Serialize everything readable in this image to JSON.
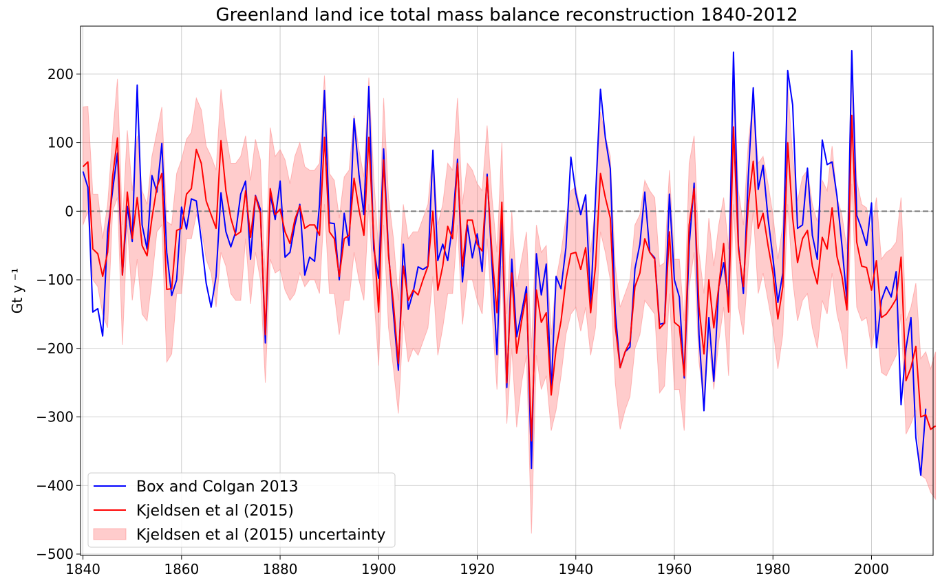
{
  "chart_data": {
    "type": "line",
    "title": "Greenland land ice total mass balance reconstruction 1840-2012",
    "xlabel": "",
    "ylabel": "Gt y ⁻¹",
    "xlim": [
      1839.5,
      2012.5
    ],
    "ylim": [
      -502,
      270
    ],
    "xticks": [
      1840,
      1860,
      1880,
      1900,
      1920,
      1940,
      1960,
      1980,
      2000
    ],
    "xtick_labels": [
      "1840",
      "1860",
      "1880",
      "1900",
      "1920",
      "1940",
      "1960",
      "1980",
      "2000"
    ],
    "yticks": [
      200,
      100,
      0,
      -100,
      -200,
      -300,
      -400,
      -500
    ],
    "ytick_labels": [
      "200",
      "100",
      "0",
      "−100",
      "−200",
      "−300",
      "−400",
      "−500"
    ],
    "grid": true,
    "zero_line": true,
    "legend_position": "lower-left",
    "colors": {
      "box_colgan": "#0000ff",
      "kjeldsen": "#ff0000",
      "uncertainty": "#ff8080",
      "zero_line": "#808080",
      "grid": "#b0b0b0"
    },
    "series": [
      {
        "name": "Box and Colgan 2013",
        "color": "#0000ff",
        "start_year": 1840,
        "values": [
          58,
          35,
          -147,
          -142,
          -182,
          -30,
          30,
          85,
          -93,
          7,
          -44,
          184,
          -20,
          -55,
          52,
          28,
          99,
          -60,
          -123,
          -100,
          6,
          -26,
          18,
          15,
          -42,
          -105,
          -140,
          -95,
          27,
          -30,
          -52,
          -30,
          25,
          44,
          -70,
          23,
          3,
          -192,
          25,
          -12,
          44,
          -67,
          -60,
          -20,
          10,
          -93,
          -67,
          -73,
          10,
          176,
          -17,
          -18,
          -100,
          -3,
          -50,
          135,
          54,
          -5,
          182,
          -55,
          -98,
          91,
          -60,
          -150,
          -232,
          -48,
          -143,
          -118,
          -81,
          -85,
          -80,
          89,
          -72,
          -48,
          -72,
          -20,
          76,
          -103,
          -20,
          -68,
          -33,
          -88,
          54,
          -78,
          -209,
          -12,
          -257,
          -70,
          -183,
          -148,
          -110,
          -375,
          -62,
          -122,
          -77,
          -262,
          -95,
          -113,
          -53,
          79,
          26,
          -5,
          24,
          -135,
          20,
          178,
          107,
          62,
          -148,
          -228,
          -205,
          -198,
          -84,
          -48,
          28,
          -60,
          -68,
          -165,
          -163,
          25,
          -100,
          -125,
          -243,
          -50,
          41,
          -180,
          -291,
          -155,
          -248,
          -110,
          -75,
          -130,
          232,
          -50,
          -120,
          50,
          180,
          32,
          67,
          -10,
          -68,
          -133,
          -90,
          205,
          155,
          -25,
          -20,
          63,
          -35,
          -70,
          104,
          68,
          72,
          22,
          -50,
          -130,
          234,
          -6,
          -26,
          -50,
          12,
          -199,
          -130,
          -110,
          -125,
          -88,
          -282,
          -200,
          -155,
          -330,
          -385,
          -288
        ]
      },
      {
        "name": "Kjeldsen et al (2015)",
        "color": "#ff0000",
        "start_year": 1840,
        "values": [
          65,
          72,
          -55,
          -62,
          -95,
          -60,
          50,
          107,
          -93,
          28,
          -40,
          20,
          -50,
          -65,
          -10,
          35,
          55,
          -114,
          -113,
          -28,
          -25,
          25,
          33,
          90,
          70,
          15,
          -5,
          -25,
          103,
          30,
          -10,
          -35,
          -30,
          30,
          -38,
          22,
          -3,
          -180,
          33,
          -5,
          3,
          -30,
          -47,
          -12,
          8,
          -25,
          -20,
          -20,
          -35,
          108,
          -30,
          -40,
          -95,
          -40,
          -35,
          48,
          3,
          -35,
          108,
          -40,
          -147,
          75,
          -65,
          -135,
          -222,
          -80,
          -130,
          -115,
          -122,
          -100,
          -80,
          0,
          -115,
          -80,
          -22,
          -40,
          70,
          -80,
          -13,
          -13,
          -48,
          -58,
          50,
          -62,
          -148,
          13,
          -250,
          -90,
          -207,
          -160,
          -120,
          -335,
          -115,
          -162,
          -148,
          -268,
          -200,
          -160,
          -100,
          -62,
          -60,
          -85,
          -53,
          -148,
          -80,
          55,
          20,
          -10,
          -168,
          -228,
          -205,
          -190,
          -110,
          -90,
          -40,
          -60,
          -70,
          -171,
          -163,
          -30,
          -162,
          -168,
          -240,
          -20,
          33,
          -140,
          -208,
          -100,
          -170,
          -110,
          -47,
          -147,
          123,
          -55,
          -110,
          10,
          73,
          -25,
          -3,
          -50,
          -90,
          -157,
          -110,
          100,
          -10,
          -75,
          -40,
          -28,
          -80,
          -106,
          -38,
          -55,
          5,
          -66,
          -95,
          -144,
          140,
          -45,
          -80,
          -82,
          -115,
          -72,
          -155,
          -150,
          -140,
          -128,
          -67,
          -247,
          -228,
          -197,
          -300,
          -297,
          -318,
          -313
        ]
      }
    ],
    "band": {
      "name": "Kjeldsen et al (2015) uncertainty",
      "color": "#ff8080",
      "start_year": 1840,
      "lower": [
        -20,
        0,
        -100,
        -110,
        -150,
        -170,
        0,
        20,
        -195,
        -20,
        -130,
        -70,
        -150,
        -160,
        -100,
        -30,
        -20,
        -220,
        -208,
        -120,
        -120,
        -40,
        -40,
        -5,
        -25,
        -70,
        -90,
        -140,
        -60,
        -80,
        -120,
        -130,
        -130,
        -40,
        -135,
        -60,
        -100,
        -250,
        -70,
        -90,
        -85,
        -115,
        -130,
        -120,
        -90,
        -110,
        -100,
        -100,
        -120,
        10,
        -120,
        -120,
        -180,
        -130,
        -130,
        -60,
        -100,
        -130,
        10,
        -120,
        -225,
        -20,
        -170,
        -230,
        -295,
        -160,
        -220,
        -200,
        -210,
        -190,
        -170,
        -95,
        -210,
        -170,
        -120,
        -120,
        -20,
        -165,
        -100,
        -100,
        -130,
        -150,
        -40,
        -150,
        -260,
        -80,
        -310,
        -200,
        -315,
        -250,
        -210,
        -470,
        -210,
        -260,
        -240,
        -320,
        -290,
        -240,
        -180,
        -150,
        -140,
        -175,
        -140,
        -210,
        -170,
        -30,
        -60,
        -100,
        -250,
        -318,
        -290,
        -270,
        -200,
        -180,
        -130,
        -140,
        -150,
        -265,
        -255,
        -120,
        -260,
        -260,
        -320,
        -110,
        -60,
        -220,
        -280,
        -190,
        -260,
        -190,
        -140,
        -240,
        10,
        -140,
        -180,
        -80,
        0,
        -120,
        -90,
        -130,
        -170,
        -230,
        -180,
        10,
        -100,
        -160,
        -130,
        -120,
        -170,
        -200,
        -130,
        -150,
        -90,
        -150,
        -180,
        -230,
        40,
        -140,
        -160,
        -155,
        -200,
        -160,
        -235,
        -240,
        -225,
        -210,
        -150,
        -325,
        -310,
        -290,
        -385,
        -390,
        -410,
        -420
      ],
      "upper": [
        152,
        153,
        25,
        25,
        -40,
        10,
        110,
        193,
        -20,
        118,
        30,
        110,
        30,
        10,
        80,
        115,
        152,
        -15,
        -20,
        55,
        75,
        105,
        115,
        165,
        148,
        95,
        80,
        60,
        178,
        112,
        70,
        70,
        80,
        110,
        45,
        105,
        75,
        -100,
        122,
        80,
        90,
        75,
        40,
        80,
        100,
        65,
        60,
        60,
        70,
        198,
        55,
        45,
        -10,
        50,
        60,
        140,
        90,
        50,
        195,
        50,
        -60,
        165,
        20,
        -40,
        -130,
        10,
        -40,
        -30,
        -30,
        -10,
        10,
        90,
        -20,
        10,
        70,
        60,
        165,
        10,
        70,
        60,
        40,
        30,
        125,
        20,
        -60,
        100,
        -150,
        0,
        -110,
        -70,
        -30,
        -200,
        -20,
        -60,
        -50,
        -180,
        -100,
        -60,
        -10,
        30,
        35,
        0,
        25,
        -60,
        10,
        145,
        110,
        80,
        -80,
        -140,
        -120,
        -100,
        -20,
        -5,
        45,
        30,
        20,
        -80,
        -75,
        60,
        -70,
        -70,
        -160,
        70,
        110,
        -60,
        -120,
        -10,
        -80,
        -20,
        20,
        -55,
        210,
        30,
        -20,
        100,
        165,
        70,
        80,
        40,
        -5,
        -70,
        -20,
        185,
        80,
        15,
        50,
        60,
        10,
        -15,
        45,
        30,
        95,
        20,
        -5,
        -55,
        228,
        45,
        10,
        5,
        -30,
        20,
        -70,
        -60,
        -55,
        -45,
        20,
        -160,
        -140,
        -105,
        -215,
        -205,
        -230,
        -205
      ]
    },
    "legend": [
      {
        "label": "Box and Colgan 2013",
        "kind": "line",
        "color": "#0000ff"
      },
      {
        "label": "Kjeldsen et al (2015)",
        "kind": "line",
        "color": "#ff0000"
      },
      {
        "label": "Kjeldsen et al (2015) uncertainty",
        "kind": "patch",
        "color": "#ff8080"
      }
    ]
  }
}
